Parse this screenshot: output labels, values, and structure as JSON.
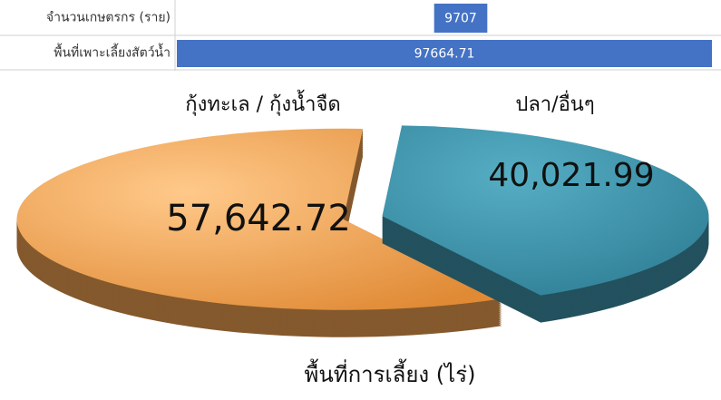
{
  "chart_data": [
    {
      "type": "hbar",
      "categories": [
        "จำนวนเกษตรกร (ราย)",
        "พื้นที่เพาะเลี้ยงสัตว์น้ำ"
      ],
      "values": [
        9707,
        97664.71
      ],
      "color": "#4472c4"
    },
    {
      "type": "pie",
      "title": "พื้นที่การเลี้ยง (ไร่)",
      "categories": [
        "กุ้งทะเล / กุ้งน้ำจืด",
        "ปลา/อื่นๆ"
      ],
      "values": [
        57642.72,
        40021.99
      ],
      "value_labels": [
        "57,642.72",
        "40,021.99"
      ],
      "colors": [
        "#f0a152",
        "#3f93aa"
      ]
    }
  ]
}
